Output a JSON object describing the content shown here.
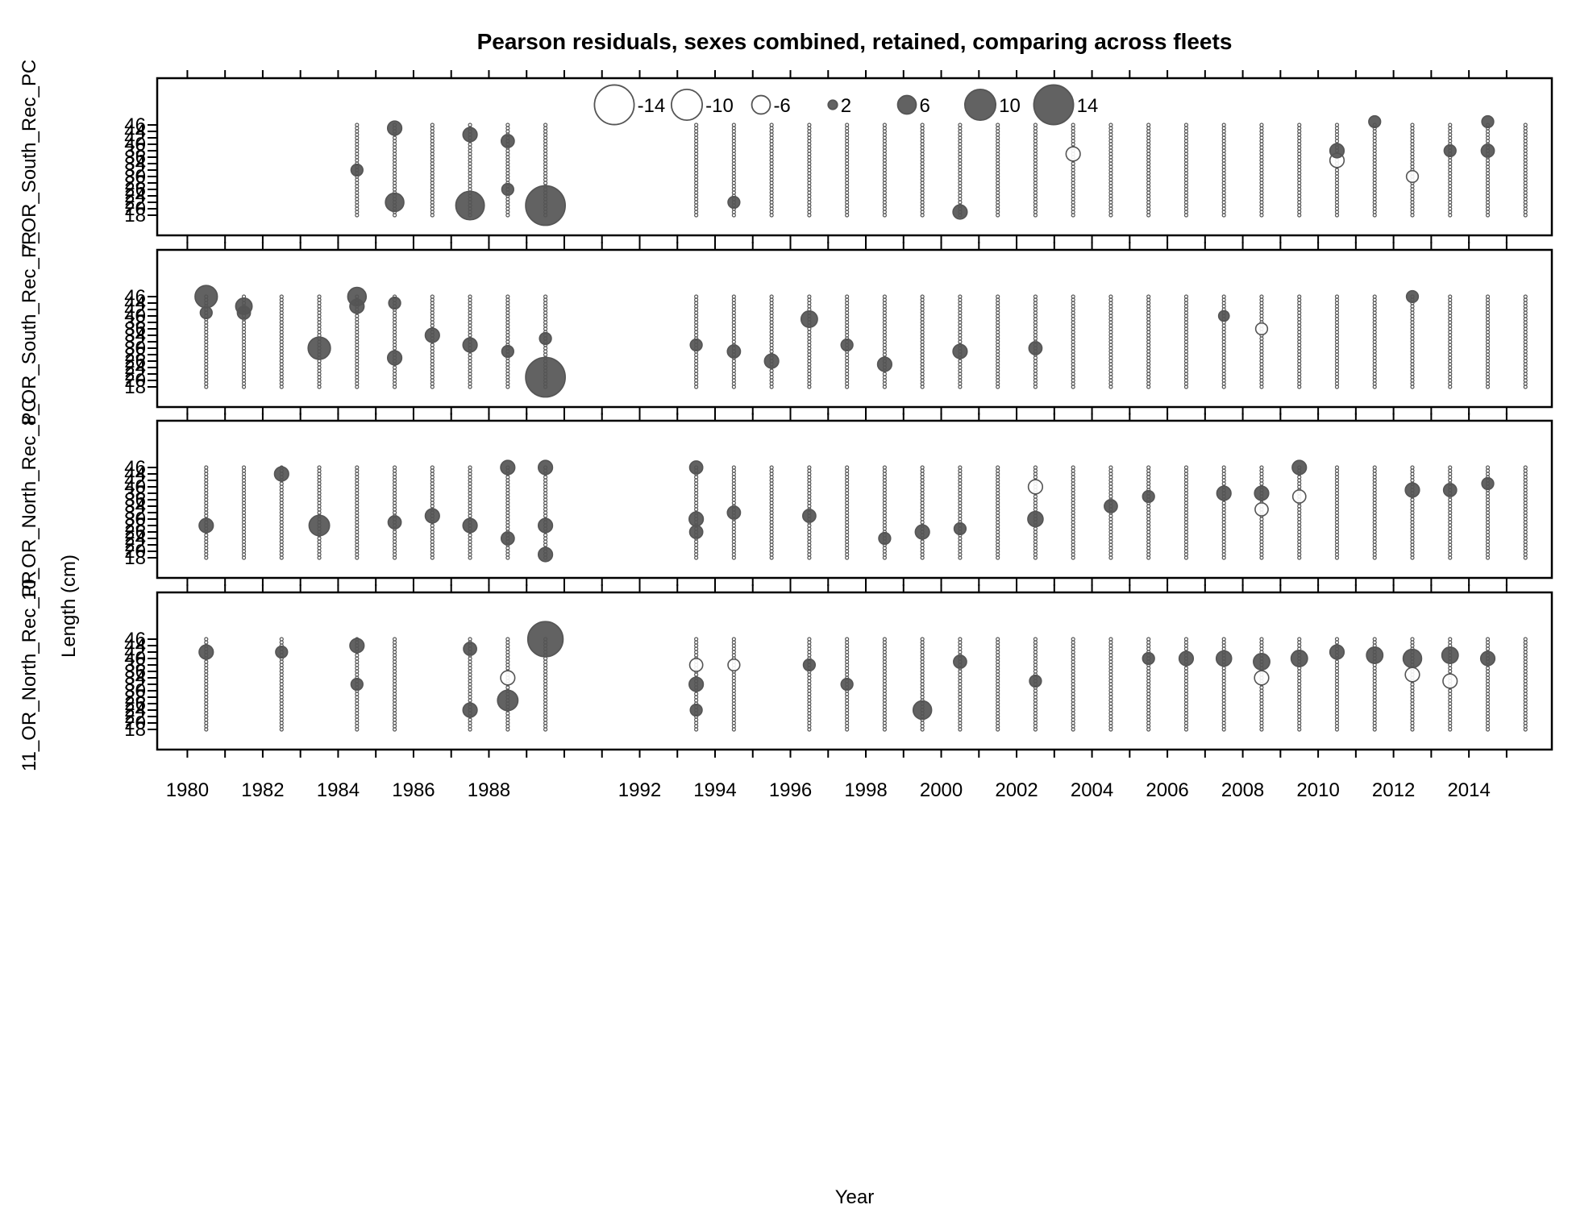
{
  "chart_data": {
    "type": "scatter",
    "title": "Pearson residuals, sexes combined, retained, comparing across fleets",
    "xlabel": "Year",
    "ylabel": "Length (cm)",
    "xlim": [
      1979.2,
      2016.2
    ],
    "ylim": [
      16,
      50
    ],
    "x_ticks": [
      1980,
      1982,
      1984,
      1986,
      1988,
      1992,
      1994,
      1996,
      1998,
      2000,
      2002,
      2004,
      2006,
      2008,
      2010,
      2012,
      2014
    ],
    "y_ticks": [
      18,
      20,
      22,
      24,
      26,
      28,
      30,
      32,
      34,
      36,
      38,
      40,
      42,
      44,
      46
    ],
    "legend": {
      "placement": "top-center",
      "values": [
        -14,
        -10,
        -6,
        2,
        6,
        10,
        14
      ]
    },
    "colors": {
      "positive": "#555555",
      "negative": "#ffffff",
      "outline": "#555555"
    },
    "panels": [
      {
        "fleet": "7_OR_South_Rec_PC",
        "bubbles": [
          {
            "x": 1984.5,
            "y": 32,
            "v": 3
          },
          {
            "x": 1985.5,
            "y": 45,
            "v": 4
          },
          {
            "x": 1985.5,
            "y": 22,
            "v": 6
          },
          {
            "x": 1987.5,
            "y": 21,
            "v": 9
          },
          {
            "x": 1987.5,
            "y": 43,
            "v": 4
          },
          {
            "x": 1988.5,
            "y": 41,
            "v": 3.5
          },
          {
            "x": 1988.5,
            "y": 26,
            "v": 3
          },
          {
            "x": 1989.5,
            "y": 21,
            "v": 14
          },
          {
            "x": 1994.5,
            "y": 22,
            "v": 3
          },
          {
            "x": 2000.5,
            "y": 19,
            "v": 4
          },
          {
            "x": 2003.5,
            "y": 37,
            "v": -4
          },
          {
            "x": 2010.5,
            "y": 35,
            "v": -4
          },
          {
            "x": 2011.5,
            "y": 47,
            "v": 3
          },
          {
            "x": 2012.5,
            "y": 30,
            "v": -3
          },
          {
            "x": 2014.5,
            "y": 47,
            "v": 3
          },
          {
            "x": 2014.5,
            "y": 38,
            "v": 3.5
          },
          {
            "x": 2010.5,
            "y": 38,
            "v": 4
          },
          {
            "x": 2013.5,
            "y": 38,
            "v": 3
          }
        ]
      },
      {
        "fleet": "8_OR_South_Rec_PR",
        "bubbles": [
          {
            "x": 1980.5,
            "y": 46,
            "v": 8
          },
          {
            "x": 1980.5,
            "y": 41,
            "v": 3
          },
          {
            "x": 1981.5,
            "y": 43,
            "v": 5
          },
          {
            "x": 1981.5,
            "y": 41,
            "v": 3.5
          },
          {
            "x": 1983.5,
            "y": 30,
            "v": 8
          },
          {
            "x": 1984.5,
            "y": 46,
            "v": 6
          },
          {
            "x": 1984.5,
            "y": 43,
            "v": 4
          },
          {
            "x": 1985.5,
            "y": 44,
            "v": 3
          },
          {
            "x": 1985.5,
            "y": 27,
            "v": 4
          },
          {
            "x": 1986.5,
            "y": 34,
            "v": 4
          },
          {
            "x": 1987.5,
            "y": 31,
            "v": 4
          },
          {
            "x": 1988.5,
            "y": 29,
            "v": 3
          },
          {
            "x": 1989.5,
            "y": 33,
            "v": 3
          },
          {
            "x": 1989.5,
            "y": 21,
            "v": 14
          },
          {
            "x": 1993.5,
            "y": 31,
            "v": 3
          },
          {
            "x": 1994.5,
            "y": 29,
            "v": 3.5
          },
          {
            "x": 1995.5,
            "y": 26,
            "v": 4
          },
          {
            "x": 1996.5,
            "y": 39,
            "v": 5
          },
          {
            "x": 1997.5,
            "y": 31,
            "v": 3
          },
          {
            "x": 1998.5,
            "y": 25,
            "v": 4
          },
          {
            "x": 2000.5,
            "y": 29,
            "v": 4
          },
          {
            "x": 2002.5,
            "y": 30,
            "v": 3.5
          },
          {
            "x": 2007.5,
            "y": 40,
            "v": 2.5
          },
          {
            "x": 2008.5,
            "y": 36,
            "v": -3
          },
          {
            "x": 2012.5,
            "y": 46,
            "v": 3
          }
        ]
      },
      {
        "fleet": "10_OR_North_Rec_PC",
        "bubbles": [
          {
            "x": 1980.5,
            "y": 28,
            "v": 4
          },
          {
            "x": 1982.5,
            "y": 44,
            "v": 4
          },
          {
            "x": 1983.5,
            "y": 28,
            "v": 7
          },
          {
            "x": 1985.5,
            "y": 29,
            "v": 3.5
          },
          {
            "x": 1986.5,
            "y": 31,
            "v": 4
          },
          {
            "x": 1987.5,
            "y": 28,
            "v": 4
          },
          {
            "x": 1988.5,
            "y": 46,
            "v": 4
          },
          {
            "x": 1988.5,
            "y": 24,
            "v": 3.5
          },
          {
            "x": 1989.5,
            "y": 46,
            "v": 4
          },
          {
            "x": 1989.5,
            "y": 28,
            "v": 4
          },
          {
            "x": 1989.5,
            "y": 19,
            "v": 4
          },
          {
            "x": 1993.5,
            "y": 46,
            "v": 3.5
          },
          {
            "x": 1993.5,
            "y": 30,
            "v": 4
          },
          {
            "x": 1993.5,
            "y": 26,
            "v": 3.5
          },
          {
            "x": 1994.5,
            "y": 32,
            "v": 3.5
          },
          {
            "x": 1996.5,
            "y": 31,
            "v": 3.5
          },
          {
            "x": 1998.5,
            "y": 24,
            "v": 3
          },
          {
            "x": 1999.5,
            "y": 26,
            "v": 4
          },
          {
            "x": 2000.5,
            "y": 27,
            "v": 3
          },
          {
            "x": 2002.5,
            "y": 30,
            "v": 4.5
          },
          {
            "x": 2002.5,
            "y": 40,
            "v": -4
          },
          {
            "x": 2004.5,
            "y": 34,
            "v": 3.5
          },
          {
            "x": 2005.5,
            "y": 37,
            "v": 3
          },
          {
            "x": 2007.5,
            "y": 38,
            "v": 4
          },
          {
            "x": 2008.5,
            "y": 38,
            "v": 4
          },
          {
            "x": 2008.5,
            "y": 33,
            "v": -3.5
          },
          {
            "x": 2009.5,
            "y": 46,
            "v": 4
          },
          {
            "x": 2009.5,
            "y": 37,
            "v": -3.5
          },
          {
            "x": 2012.5,
            "y": 39,
            "v": 4
          },
          {
            "x": 2013.5,
            "y": 39,
            "v": 3.5
          },
          {
            "x": 2014.5,
            "y": 41,
            "v": 3
          }
        ]
      },
      {
        "fleet": "11_OR_North_Rec_PR",
        "bubbles": [
          {
            "x": 1980.5,
            "y": 42,
            "v": 4
          },
          {
            "x": 1982.5,
            "y": 42,
            "v": 3
          },
          {
            "x": 1984.5,
            "y": 44,
            "v": 4
          },
          {
            "x": 1984.5,
            "y": 32,
            "v": 3
          },
          {
            "x": 1987.5,
            "y": 43,
            "v": 3.5
          },
          {
            "x": 1987.5,
            "y": 24,
            "v": 4
          },
          {
            "x": 1988.5,
            "y": 27,
            "v": 7
          },
          {
            "x": 1988.5,
            "y": 34,
            "v": -4
          },
          {
            "x": 1989.5,
            "y": 46,
            "v": 12
          },
          {
            "x": 1993.5,
            "y": 32,
            "v": 4
          },
          {
            "x": 1993.5,
            "y": 24,
            "v": 3
          },
          {
            "x": 1993.5,
            "y": 38,
            "v": -3.5
          },
          {
            "x": 1994.5,
            "y": 38,
            "v": -3
          },
          {
            "x": 1996.5,
            "y": 38,
            "v": 3
          },
          {
            "x": 1997.5,
            "y": 32,
            "v": 3
          },
          {
            "x": 1999.5,
            "y": 24,
            "v": 6
          },
          {
            "x": 2000.5,
            "y": 39,
            "v": 3.5
          },
          {
            "x": 2002.5,
            "y": 33,
            "v": 3
          },
          {
            "x": 2005.5,
            "y": 40,
            "v": 3
          },
          {
            "x": 2006.5,
            "y": 40,
            "v": 4
          },
          {
            "x": 2007.5,
            "y": 40,
            "v": 4.5
          },
          {
            "x": 2008.5,
            "y": 39,
            "v": 5
          },
          {
            "x": 2008.5,
            "y": 34,
            "v": -4
          },
          {
            "x": 2009.5,
            "y": 40,
            "v": 5
          },
          {
            "x": 2010.5,
            "y": 42,
            "v": 4
          },
          {
            "x": 2011.5,
            "y": 41,
            "v": 5
          },
          {
            "x": 2012.5,
            "y": 40,
            "v": 6
          },
          {
            "x": 2012.5,
            "y": 35,
            "v": -4
          },
          {
            "x": 2013.5,
            "y": 41,
            "v": 5
          },
          {
            "x": 2013.5,
            "y": 33,
            "v": -4
          },
          {
            "x": 2014.5,
            "y": 40,
            "v": 4
          }
        ]
      }
    ]
  }
}
